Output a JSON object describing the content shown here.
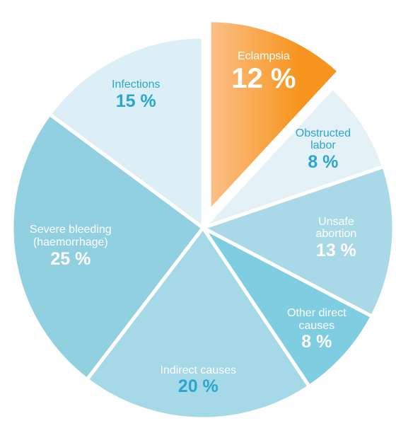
{
  "chart_data": {
    "type": "pie",
    "categories": [
      "Eclampsia",
      "Obstructed\nlabor",
      "Unsafe abortion",
      "Other direct\ncauses",
      "Indirect causes",
      "Severe bleeding\n(haemorrhage)",
      "Infections"
    ],
    "values": [
      12,
      8,
      13,
      8,
      20,
      25,
      15
    ],
    "value_labels": [
      "12 %",
      "8 %",
      "13 %",
      "8 %",
      "20 %",
      "25 %",
      "15 %"
    ],
    "colors": [
      "#f7941d",
      "#e4f2f8",
      "#a9d9e7",
      "#7fcde1",
      "#a6d9e8",
      "#91d0e1",
      "#ddeff6"
    ],
    "exploded": [
      0
    ]
  }
}
